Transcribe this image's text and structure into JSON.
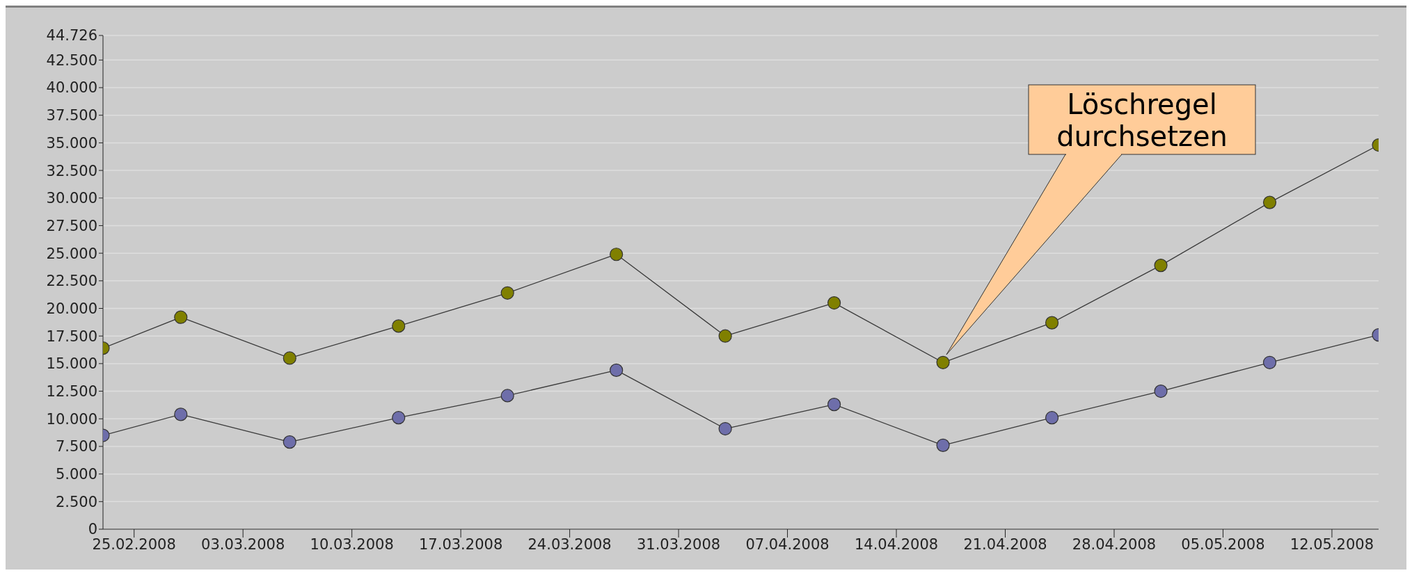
{
  "chart_data": {
    "type": "line",
    "x": [
      "2008-02-23",
      "2008-02-28",
      "2008-03-06",
      "2008-03-13",
      "2008-03-20",
      "2008-03-27",
      "2008-04-03",
      "2008-04-10",
      "2008-04-17",
      "2008-04-24",
      "2008-05-01",
      "2008-05-08",
      "2008-05-15"
    ],
    "series": [
      {
        "color": "#808000",
        "values": [
          16400,
          19200,
          15500,
          18400,
          21400,
          24900,
          17500,
          20500,
          15100,
          18700,
          23900,
          29600,
          34800
        ]
      },
      {
        "color": "#6e6eaa",
        "values": [
          8500,
          10400,
          7900,
          10100,
          12100,
          14400,
          9100,
          11300,
          7600,
          10100,
          12500,
          15100,
          17600
        ]
      }
    ],
    "xlim": [
      "2008-02-23",
      "2008-05-15"
    ],
    "xticks": [
      {
        "value": "2008-02-25",
        "label": "25.02.2008"
      },
      {
        "value": "2008-03-03",
        "label": "03.03.2008"
      },
      {
        "value": "2008-03-10",
        "label": "10.03.2008"
      },
      {
        "value": "2008-03-17",
        "label": "17.03.2008"
      },
      {
        "value": "2008-03-24",
        "label": "24.03.2008"
      },
      {
        "value": "2008-03-31",
        "label": "31.03.2008"
      },
      {
        "value": "2008-04-07",
        "label": "07.04.2008"
      },
      {
        "value": "2008-04-14",
        "label": "14.04.2008"
      },
      {
        "value": "2008-04-21",
        "label": "21.04.2008"
      },
      {
        "value": "2008-04-28",
        "label": "28.04.2008"
      },
      {
        "value": "2008-05-05",
        "label": "05.05.2008"
      },
      {
        "value": "2008-05-12",
        "label": "12.05.2008"
      }
    ],
    "ylim": [
      0,
      44726
    ],
    "yticks": [
      0,
      {
        "value": 2500,
        "label": "2.500"
      },
      {
        "value": 5000,
        "label": "5.000"
      },
      {
        "value": 7500,
        "label": "7.500"
      },
      {
        "value": 10000,
        "label": "10.000"
      },
      {
        "value": 12500,
        "label": "12.500"
      },
      {
        "value": 15000,
        "label": "15.000"
      },
      {
        "value": 17500,
        "label": "17.500"
      },
      {
        "value": 20000,
        "label": "20.000"
      },
      {
        "value": 22500,
        "label": "22.500"
      },
      {
        "value": 25000,
        "label": "25.000"
      },
      {
        "value": 27500,
        "label": "27.500"
      },
      {
        "value": 30000,
        "label": "30.000"
      },
      {
        "value": 32500,
        "label": "32.500"
      },
      {
        "value": 35000,
        "label": "35.000"
      },
      {
        "value": 37500,
        "label": "37.500"
      },
      {
        "value": 40000,
        "label": "40.000"
      },
      {
        "value": 42500,
        "label": "42.500"
      },
      {
        "value": 44726,
        "label": "44.726"
      }
    ],
    "grid": "y",
    "marker": "circle",
    "line_style": "solid",
    "legend": false,
    "annotations": [
      "Löschregel\ndurchsetzen"
    ]
  }
}
